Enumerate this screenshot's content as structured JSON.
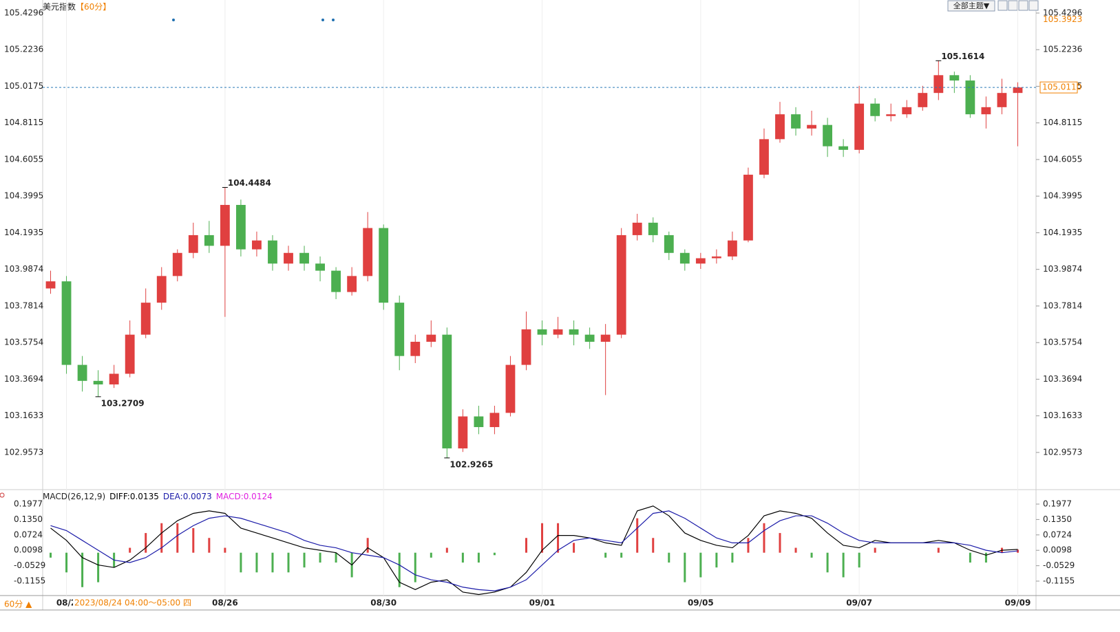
{
  "ui": {
    "theme_button": "全部主题▼",
    "period_button": "60分 ▲",
    "hover_time": "2023/08/24 04:00～05:00 四"
  },
  "chart_data": [
    {
      "type": "candlestick",
      "title": "美元指数",
      "subtitle": "【60分】",
      "up_color": "#e04040",
      "down_color": "#4caf50",
      "categories": [
        null,
        "08/2",
        null,
        null,
        null,
        null,
        null,
        null,
        null,
        null,
        null,
        "08/26",
        null,
        null,
        null,
        null,
        null,
        null,
        null,
        null,
        null,
        "08/30",
        null,
        null,
        null,
        null,
        null,
        null,
        null,
        null,
        null,
        "09/01",
        null,
        null,
        null,
        null,
        null,
        null,
        null,
        null,
        null,
        "09/05",
        null,
        null,
        null,
        null,
        null,
        null,
        null,
        null,
        null,
        "09/07",
        null,
        null,
        null,
        null,
        null,
        null,
        null,
        null,
        null,
        "09/09"
      ],
      "open": [
        103.88,
        103.92,
        103.45,
        103.36,
        103.34,
        103.4,
        103.62,
        103.8,
        103.95,
        104.08,
        104.18,
        104.12,
        104.35,
        104.1,
        104.15,
        104.02,
        104.08,
        104.02,
        103.98,
        103.86,
        103.95,
        104.22,
        103.8,
        103.5,
        103.58,
        103.62,
        102.98,
        103.16,
        103.1,
        103.18,
        103.45,
        103.65,
        103.62,
        103.65,
        103.62,
        103.58,
        103.62,
        104.18,
        104.25,
        104.18,
        104.08,
        104.02,
        104.05,
        104.06,
        104.15,
        104.52,
        104.72,
        104.86,
        104.78,
        104.8,
        104.68,
        104.66,
        104.92,
        104.85,
        104.86,
        104.9,
        104.98,
        105.08,
        105.05,
        104.86,
        104.9,
        104.98
      ],
      "high": [
        103.98,
        103.95,
        103.5,
        103.42,
        103.45,
        103.7,
        103.88,
        104.0,
        104.1,
        104.25,
        104.26,
        104.4484,
        104.38,
        104.2,
        104.18,
        104.12,
        104.12,
        104.06,
        104.0,
        104.0,
        104.31,
        104.24,
        103.84,
        103.62,
        103.7,
        103.66,
        103.2,
        103.22,
        103.22,
        103.5,
        103.75,
        103.7,
        103.72,
        103.7,
        103.66,
        103.68,
        104.22,
        104.3,
        104.28,
        104.2,
        104.1,
        104.08,
        104.1,
        104.2,
        104.56,
        104.78,
        104.93,
        104.9,
        104.88,
        104.84,
        104.72,
        105.02,
        104.95,
        104.92,
        104.94,
        105.02,
        105.1614,
        105.1,
        105.08,
        104.96,
        105.06,
        105.04
      ],
      "low": [
        103.85,
        103.4,
        103.3,
        103.2709,
        103.32,
        103.38,
        103.6,
        103.76,
        103.92,
        104.05,
        104.08,
        103.72,
        104.06,
        104.06,
        103.98,
        103.98,
        103.98,
        103.92,
        103.82,
        103.84,
        103.92,
        103.76,
        103.42,
        103.46,
        103.55,
        102.9265,
        102.96,
        103.06,
        103.06,
        103.16,
        103.42,
        103.56,
        103.6,
        103.56,
        103.54,
        103.28,
        103.6,
        104.15,
        104.14,
        104.04,
        103.98,
        103.99,
        104.02,
        104.04,
        104.14,
        104.5,
        104.7,
        104.74,
        104.74,
        104.62,
        104.62,
        104.64,
        104.82,
        104.82,
        104.84,
        104.88,
        104.94,
        104.98,
        104.84,
        104.78,
        104.86,
        104.68
      ],
      "close": [
        103.92,
        103.45,
        103.36,
        103.34,
        103.4,
        103.62,
        103.8,
        103.95,
        104.08,
        104.18,
        104.12,
        104.35,
        104.1,
        104.15,
        104.02,
        104.08,
        104.02,
        103.98,
        103.86,
        103.95,
        104.22,
        103.8,
        103.5,
        103.58,
        103.62,
        102.98,
        103.16,
        103.1,
        103.18,
        103.45,
        103.65,
        103.62,
        103.65,
        103.62,
        103.58,
        103.62,
        104.18,
        104.25,
        104.18,
        104.08,
        104.02,
        104.05,
        104.06,
        104.15,
        104.52,
        104.72,
        104.86,
        104.78,
        104.8,
        104.68,
        104.66,
        104.92,
        104.85,
        104.86,
        104.9,
        104.98,
        105.08,
        105.05,
        104.86,
        104.9,
        104.98,
        105.011
      ],
      "extremes": [
        {
          "list": "high",
          "index": 11
        },
        {
          "list": "low",
          "index": 3
        },
        {
          "list": "low",
          "index": 25
        },
        {
          "list": "high",
          "index": 56
        }
      ],
      "current_price": {
        "value": 105.011,
        "label": "105.0110"
      },
      "marker_price": 105.3923,
      "ylim": [
        102.748,
        105.503
      ],
      "yticks": [
        105.4296,
        105.2236,
        105.0175,
        104.8115,
        104.6055,
        104.3995,
        104.1935,
        103.9874,
        103.7814,
        103.5754,
        103.3694,
        103.1633,
        102.9573
      ]
    },
    {
      "type": "macd",
      "title": "MACD(26,12,9)",
      "ylim": [
        -0.163,
        0.2396
      ],
      "yticks": [
        0.1977,
        {
          "value": 0.135,
          "label": "0.1350"
        },
        0.0724,
        0.0098,
        -0.0529,
        -0.1155
      ],
      "series": [
        {
          "name": "DIFF:",
          "color": "#000000",
          "style": "line",
          "values": [
            0.1,
            0.05,
            -0.02,
            -0.05,
            -0.06,
            -0.03,
            0.02,
            0.08,
            0.13,
            0.16,
            0.17,
            0.16,
            0.1,
            0.08,
            0.06,
            0.04,
            0.02,
            0.01,
            0.0,
            -0.05,
            0.02,
            -0.02,
            -0.12,
            -0.15,
            -0.12,
            -0.11,
            -0.16,
            -0.17,
            -0.16,
            -0.14,
            -0.08,
            0.01,
            0.07,
            0.07,
            0.06,
            0.04,
            0.03,
            0.17,
            0.19,
            0.15,
            0.08,
            0.05,
            0.03,
            0.02,
            0.07,
            0.15,
            0.17,
            0.16,
            0.14,
            0.08,
            0.03,
            0.02,
            0.05,
            0.04,
            0.04,
            0.04,
            0.05,
            0.04,
            0.01,
            -0.01,
            0.01,
            0.0135
          ]
        },
        {
          "name": "DEA:",
          "color": "#1a1aa8",
          "style": "line",
          "values": [
            0.11,
            0.09,
            0.05,
            0.01,
            -0.03,
            -0.04,
            -0.02,
            0.02,
            0.07,
            0.11,
            0.14,
            0.15,
            0.14,
            0.12,
            0.1,
            0.08,
            0.05,
            0.03,
            0.02,
            0.0,
            -0.01,
            -0.02,
            -0.05,
            -0.09,
            -0.11,
            -0.12,
            -0.14,
            -0.15,
            -0.155,
            -0.14,
            -0.11,
            -0.05,
            0.01,
            0.05,
            0.06,
            0.05,
            0.04,
            0.1,
            0.16,
            0.17,
            0.14,
            0.1,
            0.06,
            0.04,
            0.04,
            0.09,
            0.13,
            0.15,
            0.15,
            0.12,
            0.08,
            0.05,
            0.04,
            0.04,
            0.04,
            0.04,
            0.04,
            0.04,
            0.03,
            0.01,
            0.0,
            0.0073
          ]
        },
        {
          "name": "MACD:",
          "color": "#e020e0",
          "style": "histogram",
          "up_color": "#e04040",
          "down_color": "#4caf50",
          "values": [
            -0.02,
            -0.08,
            -0.14,
            -0.12,
            -0.06,
            0.02,
            0.08,
            0.12,
            0.12,
            0.1,
            0.06,
            0.02,
            -0.08,
            -0.08,
            -0.08,
            -0.08,
            -0.06,
            -0.04,
            -0.04,
            -0.1,
            0.06,
            0.0,
            -0.14,
            -0.12,
            -0.02,
            0.02,
            -0.04,
            -0.04,
            -0.01,
            0.0,
            0.06,
            0.12,
            0.12,
            0.04,
            0.0,
            -0.02,
            -0.02,
            0.14,
            0.06,
            -0.04,
            -0.12,
            -0.1,
            -0.06,
            -0.04,
            0.06,
            0.12,
            0.08,
            0.02,
            -0.02,
            -0.08,
            -0.1,
            -0.06,
            0.02,
            0.0,
            0.0,
            0.0,
            0.02,
            0.0,
            -0.04,
            -0.04,
            0.02,
            0.0124
          ]
        }
      ]
    }
  ]
}
